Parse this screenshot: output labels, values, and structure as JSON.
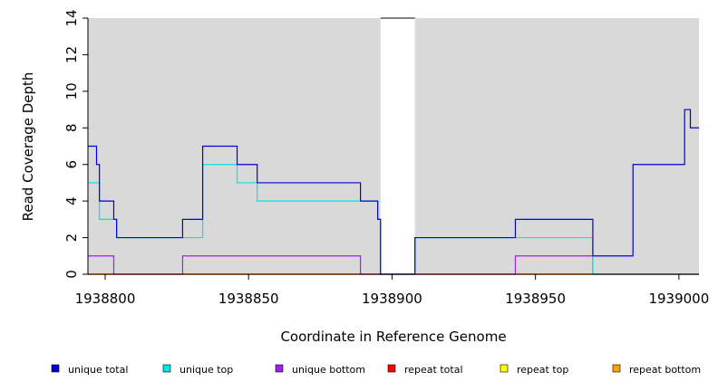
{
  "chart_data": {
    "type": "line",
    "step": true,
    "title": "",
    "xlabel": "Coordinate in Reference Genome",
    "ylabel": "Read Coverage Depth",
    "xlim": [
      1938794,
      1939007
    ],
    "ylim": [
      0,
      14
    ],
    "x_ticks": [
      1938800,
      1938850,
      1938900,
      1938950,
      1939000
    ],
    "x_tick_labels": [
      "1938800",
      "1938850",
      "1938900",
      "1938950",
      "1939000"
    ],
    "y_ticks": [
      0,
      2,
      4,
      6,
      8,
      10,
      12,
      14
    ],
    "y_tick_labels": [
      "0",
      "2",
      "4",
      "6",
      "8",
      "10",
      "12",
      "14"
    ],
    "gap_region": [
      1938896,
      1938908
    ],
    "background_color": "#d9d9d9",
    "legend_position": "bottom",
    "series": [
      {
        "name": "unique total",
        "color": "#0000dd",
        "x": [
          1938794,
          1938796,
          1938797,
          1938798,
          1938802,
          1938803,
          1938804,
          1938827,
          1938834,
          1938846,
          1938853,
          1938889,
          1938895,
          1938896,
          1938908,
          1938943,
          1938970,
          1938984,
          1939002,
          1939004,
          1939007
        ],
        "values": [
          7,
          7,
          6,
          4,
          4,
          3,
          2,
          3,
          7,
          6,
          5,
          4,
          3,
          0,
          2,
          3,
          1,
          6,
          9,
          8,
          8
        ]
      },
      {
        "name": "unique top",
        "color": "#00e5e5",
        "x": [
          1938794,
          1938797,
          1938798,
          1938804,
          1938827,
          1938834,
          1938846,
          1938853,
          1938889,
          1938895,
          1938896,
          1938908,
          1938943,
          1938970,
          1939007
        ],
        "values": [
          5,
          5,
          3,
          2,
          2,
          6,
          5,
          4,
          4,
          3,
          0,
          2,
          2,
          0,
          0
        ]
      },
      {
        "name": "unique bottom",
        "color": "#a020f0",
        "x": [
          1938794,
          1938803,
          1938827,
          1938889,
          1938943,
          1938970,
          1939007
        ],
        "values": [
          1,
          0,
          1,
          0,
          1,
          0,
          0
        ]
      },
      {
        "name": "repeat total",
        "color": "#ff0000",
        "x": [
          1938794,
          1939007
        ],
        "values": [
          0,
          0
        ]
      },
      {
        "name": "repeat top",
        "color": "#ffff00",
        "x": [
          1938794,
          1939007
        ],
        "values": [
          0,
          0
        ]
      },
      {
        "name": "repeat bottom",
        "color": "#ffa500",
        "x": [
          1938794,
          1939007
        ],
        "values": [
          0,
          0
        ]
      }
    ]
  }
}
